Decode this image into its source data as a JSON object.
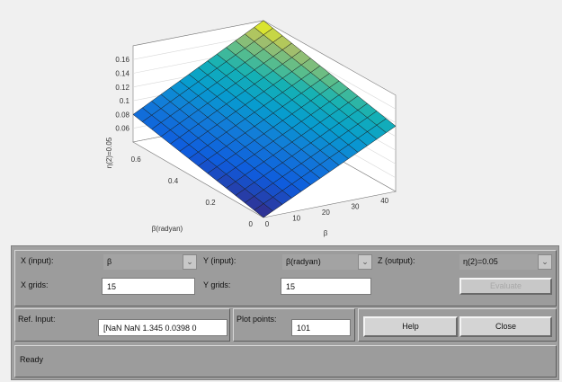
{
  "chart_data": {
    "type": "surface",
    "zlabel": "η(2)=0.05",
    "xlabel": "β",
    "ylabel": "β(radyan)",
    "z_ticks": [
      "0.16",
      "0.14",
      "0.12",
      "0.1",
      "0.08",
      "0.06"
    ],
    "x_ticks": [
      "0",
      "10",
      "20",
      "30",
      "40"
    ],
    "y_ticks": [
      "0",
      "0.2",
      "0.4",
      "0.6"
    ],
    "xlim": [
      0,
      45
    ],
    "ylim": [
      0,
      0.7
    ],
    "zlim": [
      0.04,
      0.18
    ],
    "grid_points": 15,
    "colormap": "parula",
    "grid": true
  },
  "controls": {
    "x_input_label": "X (input):",
    "x_input_value": "β",
    "y_input_label": "Y (input):",
    "y_input_value": "β(radyan)",
    "z_output_label": "Z (output):",
    "z_output_value": "η(2)=0.05",
    "x_grids_label": "X grids:",
    "x_grids_value": "15",
    "y_grids_label": "Y grids:",
    "y_grids_value": "15",
    "evaluate_label": "Evaluate",
    "ref_input_label": "Ref. Input:",
    "ref_input_value": "[NaN NaN 1.345 0.0398 0",
    "plot_points_label": "Plot points:",
    "plot_points_value": "101",
    "help_label": "Help",
    "close_label": "Close",
    "status": "Ready"
  }
}
